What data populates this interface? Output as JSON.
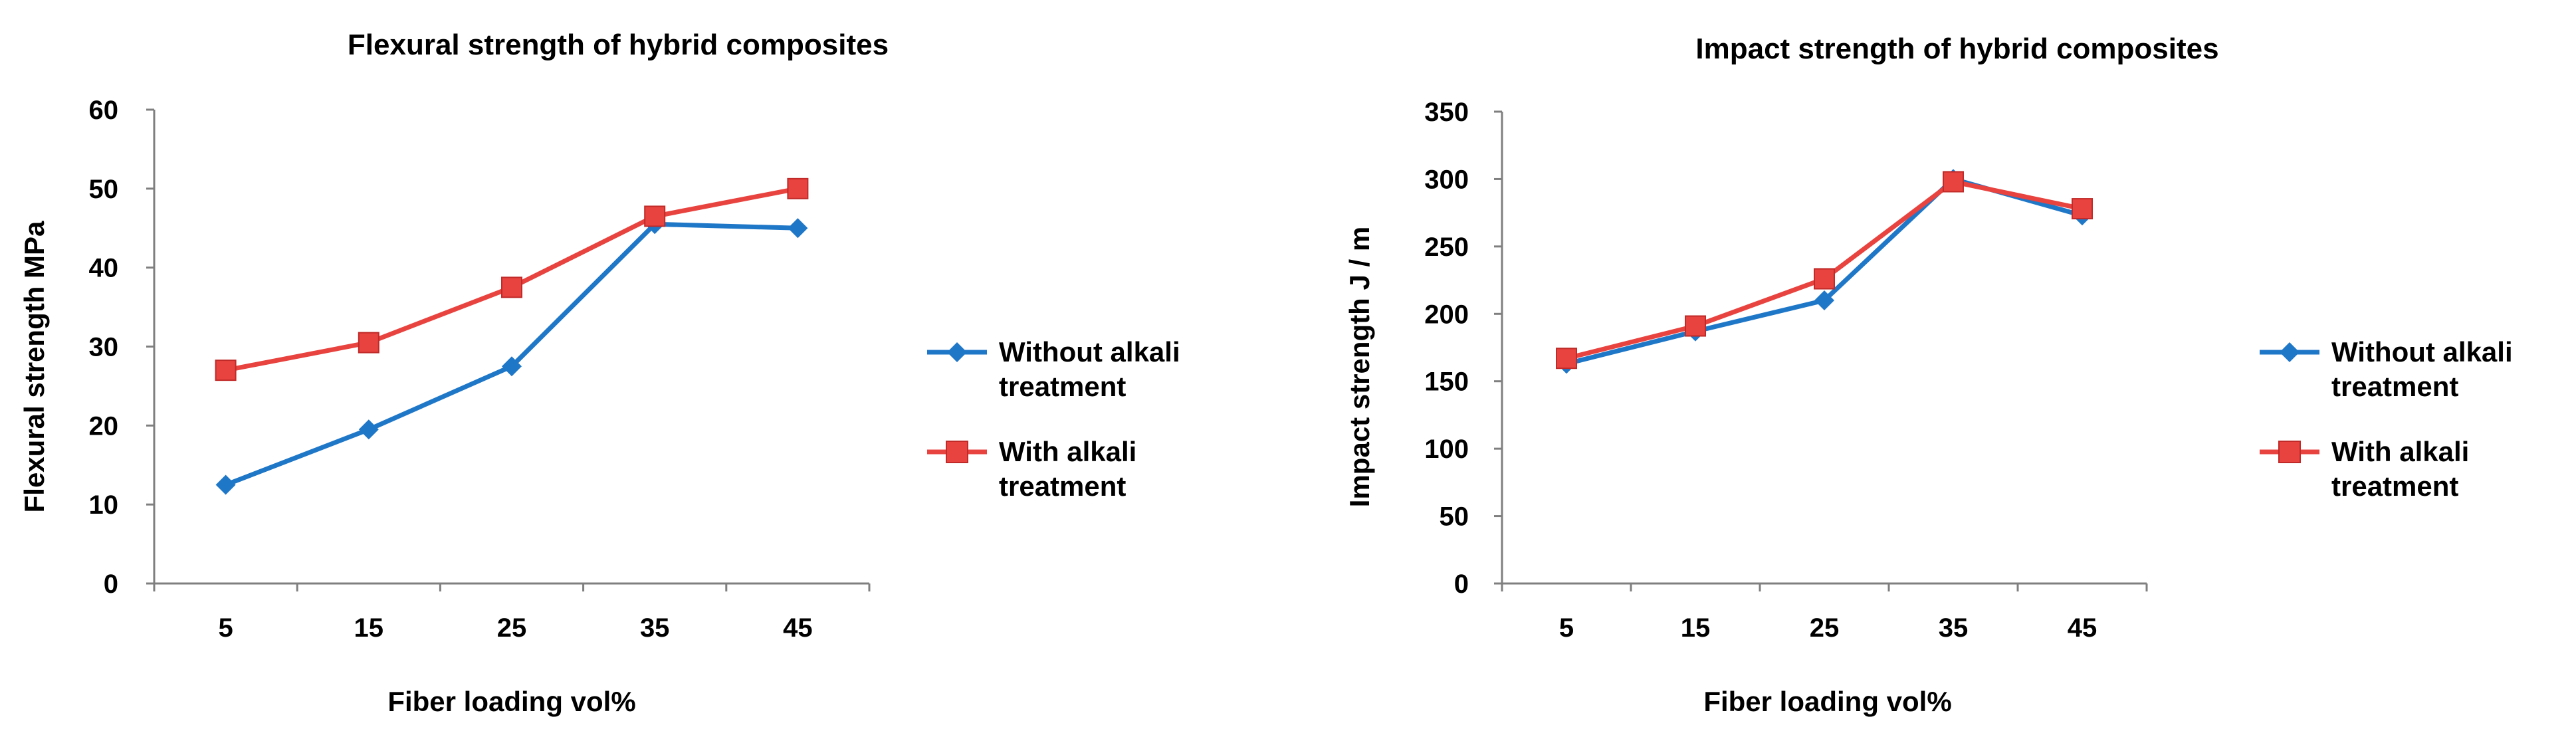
{
  "colors": {
    "without": "#1f77c8",
    "with": "#e8433f",
    "axis": "#7f7f7f"
  },
  "chart_data": [
    {
      "type": "line",
      "title": "Flexural strength of hybrid composites",
      "xlabel": "Fiber loading vol%",
      "ylabel": "Flexural strength  MPa",
      "categories": [
        "5",
        "15",
        "25",
        "35",
        "45"
      ],
      "ylim": [
        0,
        60
      ],
      "yticks": [
        "0",
        "10",
        "20",
        "30",
        "40",
        "50",
        "60"
      ],
      "legend_position": "right",
      "series": [
        {
          "name_lines": [
            "Without alkali",
            "treatment"
          ],
          "marker": "diamond",
          "color": "#1f77c8",
          "values": [
            12.5,
            19.5,
            27.5,
            45.5,
            45
          ]
        },
        {
          "name_lines": [
            "With alkali",
            "treatment"
          ],
          "marker": "square",
          "color": "#e8433f",
          "values": [
            27,
            30.5,
            37.5,
            46.5,
            50
          ]
        }
      ]
    },
    {
      "type": "line",
      "title": "Impact strength of hybrid composites",
      "xlabel": "Fiber loading vol%",
      "ylabel": "Impact strength  J / m",
      "categories": [
        "5",
        "15",
        "25",
        "35",
        "45"
      ],
      "ylim": [
        0,
        350
      ],
      "yticks": [
        "0",
        "50",
        "100",
        "150",
        "200",
        "250",
        "300",
        "350"
      ],
      "legend_position": "right",
      "series": [
        {
          "name_lines": [
            "Without alkali",
            "treatment"
          ],
          "marker": "diamond",
          "color": "#1f77c8",
          "values": [
            163,
            187,
            210,
            300,
            273
          ]
        },
        {
          "name_lines": [
            "With alkali",
            "treatment"
          ],
          "marker": "square",
          "color": "#e8433f",
          "values": [
            167,
            191,
            226,
            298,
            278
          ]
        }
      ]
    }
  ]
}
